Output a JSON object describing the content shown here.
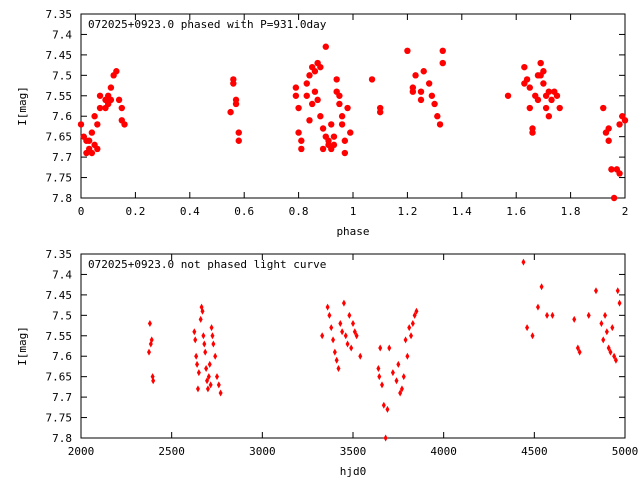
{
  "chart_data": [
    {
      "type": "scatter",
      "title": "072025+0923.0 phased with P=931.0day",
      "xlabel": "phase",
      "ylabel": "I[mag]",
      "xlim": [
        0,
        2
      ],
      "ylim": [
        7.35,
        7.8
      ],
      "y_inverted": true,
      "grid": false,
      "marker": "filled-circle",
      "xticks": [
        "0",
        "0.2",
        "0.4",
        "0.6",
        "0.8",
        "1",
        "1.2",
        "1.4",
        "1.6",
        "1.8",
        "2"
      ],
      "yticks": [
        "7.35",
        "7.4",
        "7.45",
        "7.5",
        "7.55",
        "7.6",
        "7.65",
        "7.7",
        "7.75",
        "7.8"
      ],
      "series": [
        {
          "color": "#ff0000",
          "points": [
            [
              0.0,
              7.62
            ],
            [
              0.01,
              7.65
            ],
            [
              0.02,
              7.66
            ],
            [
              0.02,
              7.69
            ],
            [
              0.03,
              7.66
            ],
            [
              0.03,
              7.68
            ],
            [
              0.04,
              7.64
            ],
            [
              0.04,
              7.69
            ],
            [
              0.05,
              7.6
            ],
            [
              0.05,
              7.67
            ],
            [
              0.06,
              7.62
            ],
            [
              0.06,
              7.68
            ],
            [
              0.07,
              7.55
            ],
            [
              0.07,
              7.58
            ],
            [
              0.09,
              7.56
            ],
            [
              0.09,
              7.58
            ],
            [
              0.1,
              7.55
            ],
            [
              0.1,
              7.57
            ],
            [
              0.11,
              7.53
            ],
            [
              0.11,
              7.56
            ],
            [
              0.12,
              7.5
            ],
            [
              0.13,
              7.49
            ],
            [
              0.14,
              7.56
            ],
            [
              0.15,
              7.58
            ],
            [
              0.15,
              7.61
            ],
            [
              0.16,
              7.62
            ],
            [
              0.55,
              7.59
            ],
            [
              0.56,
              7.51
            ],
            [
              0.56,
              7.52
            ],
            [
              0.57,
              7.56
            ],
            [
              0.57,
              7.57
            ],
            [
              0.58,
              7.64
            ],
            [
              0.58,
              7.66
            ],
            [
              0.79,
              7.53
            ],
            [
              0.79,
              7.55
            ],
            [
              0.8,
              7.58
            ],
            [
              0.8,
              7.64
            ],
            [
              0.81,
              7.66
            ],
            [
              0.81,
              7.68
            ],
            [
              0.83,
              7.52
            ],
            [
              0.83,
              7.55
            ],
            [
              0.84,
              7.5
            ],
            [
              0.84,
              7.61
            ],
            [
              0.85,
              7.48
            ],
            [
              0.85,
              7.57
            ],
            [
              0.86,
              7.49
            ],
            [
              0.86,
              7.54
            ],
            [
              0.87,
              7.47
            ],
            [
              0.87,
              7.56
            ],
            [
              0.88,
              7.48
            ],
            [
              0.88,
              7.6
            ],
            [
              0.89,
              7.63
            ],
            [
              0.89,
              7.68
            ],
            [
              0.9,
              7.43
            ],
            [
              0.9,
              7.65
            ],
            [
              0.91,
              7.66
            ],
            [
              0.91,
              7.67
            ],
            [
              0.92,
              7.62
            ],
            [
              0.92,
              7.68
            ],
            [
              0.93,
              7.65
            ],
            [
              0.93,
              7.67
            ],
            [
              0.94,
              7.51
            ],
            [
              0.94,
              7.54
            ],
            [
              0.95,
              7.55
            ],
            [
              0.95,
              7.57
            ],
            [
              0.96,
              7.6
            ],
            [
              0.96,
              7.62
            ],
            [
              0.97,
              7.66
            ],
            [
              0.97,
              7.69
            ],
            [
              0.98,
              7.58
            ],
            [
              0.99,
              7.64
            ],
            [
              1.07,
              7.51
            ],
            [
              1.1,
              7.58
            ],
            [
              1.1,
              7.59
            ],
            [
              1.2,
              7.44
            ],
            [
              1.22,
              7.53
            ],
            [
              1.22,
              7.54
            ],
            [
              1.23,
              7.5
            ],
            [
              1.25,
              7.54
            ],
            [
              1.25,
              7.56
            ],
            [
              1.26,
              7.49
            ],
            [
              1.28,
              7.52
            ],
            [
              1.29,
              7.55
            ],
            [
              1.3,
              7.57
            ],
            [
              1.31,
              7.6
            ],
            [
              1.32,
              7.62
            ],
            [
              1.33,
              7.44
            ],
            [
              1.33,
              7.47
            ],
            [
              1.57,
              7.55
            ],
            [
              1.63,
              7.48
            ],
            [
              1.63,
              7.52
            ],
            [
              1.64,
              7.51
            ],
            [
              1.65,
              7.53
            ],
            [
              1.65,
              7.58
            ],
            [
              1.66,
              7.63
            ],
            [
              1.66,
              7.64
            ],
            [
              1.67,
              7.55
            ],
            [
              1.68,
              7.5
            ],
            [
              1.68,
              7.56
            ],
            [
              1.69,
              7.47
            ],
            [
              1.69,
              7.5
            ],
            [
              1.7,
              7.49
            ],
            [
              1.7,
              7.52
            ],
            [
              1.71,
              7.55
            ],
            [
              1.71,
              7.58
            ],
            [
              1.72,
              7.54
            ],
            [
              1.72,
              7.6
            ],
            [
              1.73,
              7.56
            ],
            [
              1.74,
              7.54
            ],
            [
              1.75,
              7.55
            ],
            [
              1.76,
              7.58
            ],
            [
              1.92,
              7.58
            ],
            [
              1.93,
              7.64
            ],
            [
              1.94,
              7.63
            ],
            [
              1.94,
              7.66
            ],
            [
              1.95,
              7.73
            ],
            [
              1.96,
              7.8
            ],
            [
              1.97,
              7.73
            ],
            [
              1.98,
              7.74
            ],
            [
              1.98,
              7.62
            ],
            [
              1.99,
              7.6
            ],
            [
              2.0,
              7.61
            ]
          ]
        }
      ]
    },
    {
      "type": "scatter",
      "title": "072025+0923.0 not phased light curve",
      "xlabel": "hjd0",
      "ylabel": "I[mag]",
      "xlim": [
        2000,
        5000
      ],
      "ylim": [
        7.35,
        7.8
      ],
      "y_inverted": true,
      "grid": false,
      "marker": "diamond",
      "xticks": [
        "2000",
        "2500",
        "3000",
        "3500",
        "4000",
        "4500",
        "5000"
      ],
      "yticks": [
        "7.35",
        "7.4",
        "7.45",
        "7.5",
        "7.55",
        "7.6",
        "7.65",
        "7.7",
        "7.75",
        "7.8"
      ],
      "series": [
        {
          "color": "#ff0000",
          "points": [
            [
              2375,
              7.59
            ],
            [
              2380,
              7.52
            ],
            [
              2385,
              7.57
            ],
            [
              2390,
              7.56
            ],
            [
              2395,
              7.65
            ],
            [
              2398,
              7.66
            ],
            [
              2625,
              7.54
            ],
            [
              2630,
              7.56
            ],
            [
              2635,
              7.6
            ],
            [
              2640,
              7.62
            ],
            [
              2645,
              7.68
            ],
            [
              2650,
              7.64
            ],
            [
              2660,
              7.51
            ],
            [
              2665,
              7.48
            ],
            [
              2670,
              7.49
            ],
            [
              2675,
              7.55
            ],
            [
              2680,
              7.57
            ],
            [
              2685,
              7.59
            ],
            [
              2690,
              7.63
            ],
            [
              2695,
              7.66
            ],
            [
              2700,
              7.68
            ],
            [
              2705,
              7.65
            ],
            [
              2710,
              7.62
            ],
            [
              2715,
              7.67
            ],
            [
              2720,
              7.53
            ],
            [
              2725,
              7.55
            ],
            [
              2730,
              7.57
            ],
            [
              2740,
              7.6
            ],
            [
              2750,
              7.65
            ],
            [
              2760,
              7.67
            ],
            [
              2770,
              7.69
            ],
            [
              3330,
              7.55
            ],
            [
              3360,
              7.48
            ],
            [
              3370,
              7.5
            ],
            [
              3380,
              7.53
            ],
            [
              3390,
              7.56
            ],
            [
              3400,
              7.59
            ],
            [
              3410,
              7.61
            ],
            [
              3420,
              7.63
            ],
            [
              3430,
              7.52
            ],
            [
              3440,
              7.54
            ],
            [
              3450,
              7.47
            ],
            [
              3460,
              7.55
            ],
            [
              3470,
              7.57
            ],
            [
              3480,
              7.5
            ],
            [
              3490,
              7.58
            ],
            [
              3500,
              7.52
            ],
            [
              3510,
              7.54
            ],
            [
              3520,
              7.55
            ],
            [
              3540,
              7.6
            ],
            [
              3640,
              7.63
            ],
            [
              3645,
              7.65
            ],
            [
              3650,
              7.58
            ],
            [
              3660,
              7.67
            ],
            [
              3670,
              7.72
            ],
            [
              3680,
              7.8
            ],
            [
              3690,
              7.73
            ],
            [
              3700,
              7.58
            ],
            [
              3720,
              7.64
            ],
            [
              3740,
              7.66
            ],
            [
              3750,
              7.62
            ],
            [
              3760,
              7.69
            ],
            [
              3770,
              7.68
            ],
            [
              3780,
              7.65
            ],
            [
              3790,
              7.56
            ],
            [
              3800,
              7.6
            ],
            [
              3810,
              7.53
            ],
            [
              3820,
              7.55
            ],
            [
              3830,
              7.52
            ],
            [
              3840,
              7.5
            ],
            [
              3850,
              7.49
            ],
            [
              4440,
              7.37
            ],
            [
              4460,
              7.53
            ],
            [
              4490,
              7.55
            ],
            [
              4520,
              7.48
            ],
            [
              4540,
              7.43
            ],
            [
              4570,
              7.5
            ],
            [
              4600,
              7.5
            ],
            [
              4720,
              7.51
            ],
            [
              4740,
              7.58
            ],
            [
              4750,
              7.59
            ],
            [
              4800,
              7.5
            ],
            [
              4840,
              7.44
            ],
            [
              4870,
              7.52
            ],
            [
              4880,
              7.56
            ],
            [
              4890,
              7.5
            ],
            [
              4900,
              7.54
            ],
            [
              4910,
              7.58
            ],
            [
              4920,
              7.59
            ],
            [
              4930,
              7.53
            ],
            [
              4940,
              7.6
            ],
            [
              4950,
              7.61
            ],
            [
              4960,
              7.44
            ],
            [
              4970,
              7.47
            ]
          ]
        }
      ]
    }
  ]
}
